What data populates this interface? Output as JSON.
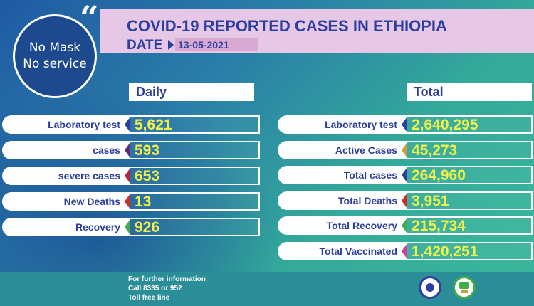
{
  "badge": {
    "line1": "No Mask",
    "line2": "No service"
  },
  "header": {
    "title": "COVID-19 REPORTED CASES IN ETHIOPIA",
    "date_label": "DATE",
    "date_value": "13-05-2021"
  },
  "daily": {
    "heading": "Daily",
    "rows": [
      {
        "label": "Laboratory test",
        "value": "5,621",
        "color": "#2d3f9e"
      },
      {
        "label": "cases",
        "value": "593",
        "color": "#5a2f7a"
      },
      {
        "label": "severe cases",
        "value": "653",
        "color": "#b3263b"
      },
      {
        "label": "New Deaths",
        "value": "13",
        "color": "#d12a2a"
      },
      {
        "label": "Recovery",
        "value": "926",
        "color": "#3fae4a"
      }
    ]
  },
  "total": {
    "heading": "Total",
    "rows": [
      {
        "label": "Laboratory test",
        "value": "2,640,295",
        "color": "#2d3f9e"
      },
      {
        "label": "Active Cases",
        "value": "45,273",
        "color": "#c9a23a"
      },
      {
        "label": "Total cases",
        "value": "264,960",
        "color": "#2d3f9e"
      },
      {
        "label": "Total Deaths",
        "value": "3,951",
        "color": "#d12a2a"
      },
      {
        "label": "Total Recovery",
        "value": "215,734",
        "color": "#3fae4a"
      },
      {
        "label": "Total Vaccinated",
        "value": "1,420,251",
        "color": "#d43a9a"
      }
    ]
  },
  "footer": {
    "line1": "For further information",
    "line2": "Call 8335 or 952",
    "line3": "Toll free line"
  }
}
